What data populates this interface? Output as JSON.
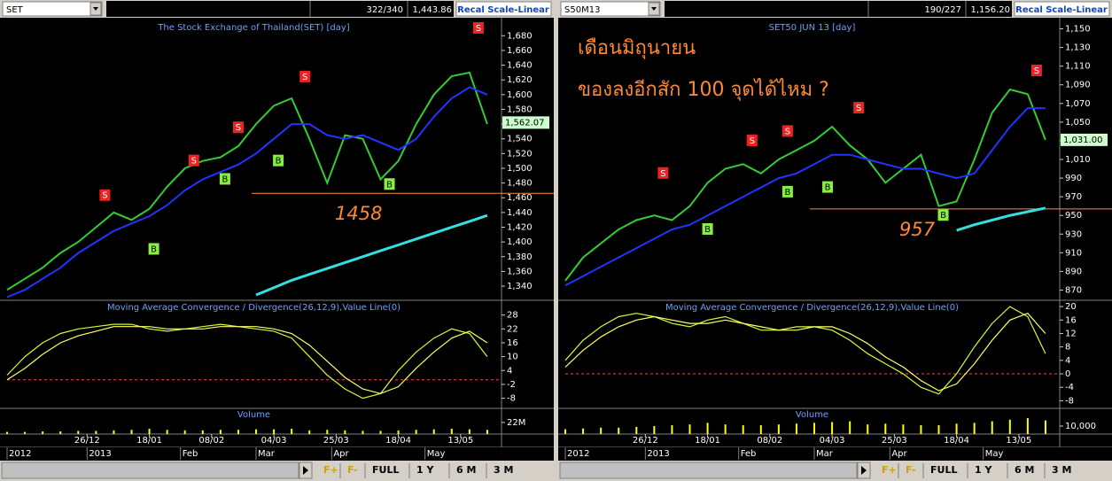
{
  "toolbars": [
    {
      "symbol": "SET",
      "count": "322/340",
      "price": "1,443.86",
      "button": "Recal Scale-Linear"
    },
    {
      "symbol": "S50M13",
      "count": "190/227",
      "price": "1,156.20",
      "button": "Recal Scale-Linear"
    }
  ],
  "bottom_bar": [
    "F+",
    "F-",
    "FULL",
    "1 Y",
    "6 M",
    "3 M"
  ],
  "notes": [
    "เดือนมิถุนายน",
    "ของลงอีกสัก 100 จุดได้ไหม ?"
  ],
  "chart_data": [
    {
      "type": "line",
      "title": "The Stock Exchange of Thailand(SET) [day]",
      "x": [
        0,
        4,
        8,
        12,
        16,
        20,
        24,
        28,
        32,
        36,
        40,
        44,
        48,
        52,
        56,
        60,
        64,
        68,
        72,
        76,
        80,
        84,
        88,
        92,
        96,
        100,
        104,
        108
      ],
      "xlim": [
        0,
        111
      ],
      "xticks": [
        {
          "value": 18,
          "label": "26/12"
        },
        {
          "value": 32,
          "label": "18/01"
        },
        {
          "value": 46,
          "label": "08/02"
        },
        {
          "value": 60,
          "label": "04/03"
        },
        {
          "value": 74,
          "label": "25/03"
        },
        {
          "value": 88,
          "label": "18/04"
        },
        {
          "value": 102,
          "label": "13/05"
        }
      ],
      "periods": [
        {
          "value": 0,
          "label": "2012"
        },
        {
          "value": 18,
          "label": "2013"
        },
        {
          "value": 39,
          "label": "Feb"
        },
        {
          "value": 56,
          "label": "Mar"
        },
        {
          "value": 73,
          "label": "Apr"
        },
        {
          "value": 94,
          "label": "May"
        }
      ],
      "ylim": [
        1322,
        1702
      ],
      "yticks": [
        {
          "value": 1340,
          "label": "1,340"
        },
        {
          "value": 1360,
          "label": "1,360"
        },
        {
          "value": 1380,
          "label": "1,380"
        },
        {
          "value": 1400,
          "label": "1,400"
        },
        {
          "value": 1420,
          "label": "1,420"
        },
        {
          "value": 1440,
          "label": "1,440"
        },
        {
          "value": 1460,
          "label": "1,460"
        },
        {
          "value": 1480,
          "label": "1,480"
        },
        {
          "value": 1500,
          "label": "1,500"
        },
        {
          "value": 1520,
          "label": "1,520"
        },
        {
          "value": 1540,
          "label": "1,540"
        },
        {
          "value": 1560,
          "label": "1,560"
        },
        {
          "value": 1580,
          "label": "1,580"
        },
        {
          "value": 1600,
          "label": "1,600"
        },
        {
          "value": 1620,
          "label": "1,620"
        },
        {
          "value": 1640,
          "label": "1,640"
        },
        {
          "value": 1660,
          "label": "1,660"
        },
        {
          "value": 1680,
          "label": "1,680"
        }
      ],
      "series": [
        {
          "name": "Close",
          "color": "#33cc33",
          "values": [
            1335,
            1350,
            1365,
            1385,
            1400,
            1420,
            1440,
            1430,
            1445,
            1475,
            1500,
            1510,
            1515,
            1530,
            1560,
            1585,
            1595,
            1540,
            1480,
            1545,
            1540,
            1485,
            1510,
            1560,
            1600,
            1625,
            1630,
            1560
          ]
        },
        {
          "name": "MA",
          "color": "#2233ff",
          "values": [
            1325,
            1335,
            1350,
            1365,
            1385,
            1400,
            1415,
            1425,
            1435,
            1450,
            1470,
            1485,
            1495,
            1505,
            1520,
            1540,
            1560,
            1560,
            1545,
            1540,
            1545,
            1535,
            1525,
            1540,
            1570,
            1595,
            1610,
            1600
          ]
        },
        {
          "name": "Value Line",
          "color": "#33e0e0",
          "values": [
            null,
            null,
            null,
            null,
            null,
            null,
            null,
            null,
            null,
            null,
            null,
            null,
            null,
            null,
            1328,
            1338,
            1348,
            1356,
            1364,
            1372,
            1380,
            1388,
            1396,
            1404,
            1412,
            1420,
            1428,
            1436
          ]
        }
      ],
      "last_label": {
        "value": 1562.07,
        "label": "1,562.07"
      },
      "hline": 1466,
      "annotation": "1458",
      "signals": [
        {
          "label": "S",
          "index": 22,
          "value": 1463
        },
        {
          "label": "S",
          "index": 42,
          "value": 1510
        },
        {
          "label": "S",
          "index": 52,
          "value": 1555
        },
        {
          "label": "S",
          "index": 67,
          "value": 1624
        },
        {
          "label": "S",
          "index": 106,
          "value": 1690
        },
        {
          "label": "B",
          "index": 33,
          "value": 1390
        },
        {
          "label": "B",
          "index": 49,
          "value": 1485
        },
        {
          "label": "B",
          "index": 61,
          "value": 1510
        },
        {
          "label": "B",
          "index": 86,
          "value": 1478
        }
      ],
      "macd": {
        "title": "Moving Average Convergence / Divergence(26,12,9),Value Line(0)",
        "ylim": [
          -12,
          34
        ],
        "yticks": [
          28,
          22,
          16,
          10,
          4,
          -2,
          -8
        ],
        "value_line": 0,
        "series": [
          {
            "name": "MACD",
            "color": "#ccff33",
            "values": [
              2,
              10,
              16,
              20,
              22,
              23,
              24,
              24,
              22,
              21,
              22,
              23,
              24,
              23,
              22,
              21,
              18,
              10,
              2,
              -4,
              -8,
              -6,
              4,
              12,
              18,
              22,
              20,
              10
            ]
          },
          {
            "name": "Signal",
            "color": "#ffff66",
            "values": [
              0,
              5,
              11,
              16,
              19,
              21,
              23,
              23,
              23,
              22,
              22,
              22,
              23,
              23,
              23,
              22,
              20,
              15,
              8,
              1,
              -4,
              -6,
              -3,
              5,
              12,
              18,
              21,
              16
            ]
          }
        ]
      },
      "volume": {
        "title": "Volume",
        "color": "#ffff00",
        "ylim": [
          0,
          47000000
        ],
        "yticks": [
          {
            "value": 22000000,
            "label": "22M"
          }
        ],
        "values": [
          4000000,
          4000000,
          5000000,
          5000000,
          6000000,
          6000000,
          7000000,
          8000000,
          10000000,
          8000000,
          7000000,
          7000000,
          8000000,
          8000000,
          9000000,
          9000000,
          10000000,
          7000000,
          8000000,
          7000000,
          6000000,
          6000000,
          7000000,
          8000000,
          9000000,
          10000000,
          9000000,
          8000000
        ]
      }
    },
    {
      "type": "line",
      "title": "SET50 JUN 13   [day]",
      "x": [
        0,
        4,
        8,
        12,
        16,
        20,
        24,
        28,
        32,
        36,
        40,
        44,
        48,
        52,
        56,
        60,
        64,
        68,
        72,
        76,
        80,
        84,
        88,
        92,
        96,
        100,
        104,
        108
      ],
      "xlim": [
        0,
        111
      ],
      "xticks": [
        {
          "value": 18,
          "label": "26/12"
        },
        {
          "value": 32,
          "label": "18/01"
        },
        {
          "value": 46,
          "label": "08/02"
        },
        {
          "value": 60,
          "label": "04/03"
        },
        {
          "value": 74,
          "label": "25/03"
        },
        {
          "value": 88,
          "label": "18/04"
        },
        {
          "value": 102,
          "label": "13/05"
        }
      ],
      "periods": [
        {
          "value": 0,
          "label": "2012"
        },
        {
          "value": 18,
          "label": "2013"
        },
        {
          "value": 39,
          "label": "Feb"
        },
        {
          "value": 56,
          "label": "Mar"
        },
        {
          "value": 73,
          "label": "Apr"
        },
        {
          "value": 94,
          "label": "May"
        }
      ],
      "ylim": [
        860,
        1160
      ],
      "yticks": [
        870,
        890,
        910,
        930,
        950,
        970,
        990,
        {
          "value": 1010,
          "label": "1,010"
        },
        {
          "value": 1030,
          "label": "1,030"
        },
        {
          "value": 1050,
          "label": "1,050"
        },
        {
          "value": 1070,
          "label": "1,070"
        },
        {
          "value": 1090,
          "label": "1,090"
        },
        {
          "value": 1110,
          "label": "1,110"
        },
        {
          "value": 1130,
          "label": "1,130"
        },
        {
          "value": 1150,
          "label": "1,150"
        }
      ],
      "series": [
        {
          "name": "Close",
          "color": "#33cc33",
          "values": [
            880,
            905,
            920,
            935,
            945,
            950,
            945,
            960,
            985,
            1000,
            1005,
            995,
            1010,
            1020,
            1030,
            1045,
            1025,
            1010,
            985,
            1000,
            1015,
            960,
            965,
            1010,
            1060,
            1085,
            1080,
            1031
          ]
        },
        {
          "name": "MA",
          "color": "#2233ff",
          "values": [
            875,
            885,
            895,
            905,
            915,
            925,
            935,
            940,
            950,
            960,
            970,
            980,
            990,
            995,
            1005,
            1015,
            1015,
            1010,
            1005,
            1000,
            1000,
            995,
            990,
            995,
            1020,
            1045,
            1065,
            1065
          ]
        },
        {
          "name": "Value Line",
          "color": "#33e0e0",
          "values": [
            null,
            null,
            null,
            null,
            null,
            null,
            null,
            null,
            null,
            null,
            null,
            null,
            null,
            null,
            null,
            null,
            null,
            null,
            null,
            null,
            null,
            null,
            934,
            940,
            945,
            950,
            954,
            958
          ]
        }
      ],
      "last_label": {
        "value": 1031,
        "label": "1,031.00"
      },
      "hline": 957,
      "annotation": "957",
      "signals": [
        {
          "label": "S",
          "index": 22,
          "value": 995
        },
        {
          "label": "S",
          "index": 42,
          "value": 1030
        },
        {
          "label": "S",
          "index": 50,
          "value": 1040
        },
        {
          "label": "S",
          "index": 66,
          "value": 1065
        },
        {
          "label": "S",
          "index": 106,
          "value": 1105
        },
        {
          "label": "B",
          "index": 32,
          "value": 935
        },
        {
          "label": "B",
          "index": 50,
          "value": 975
        },
        {
          "label": "B",
          "index": 59,
          "value": 980
        },
        {
          "label": "B",
          "index": 85,
          "value": 950
        }
      ],
      "macd": {
        "title": "Moving Average Convergence / Divergence(26,12,9),Value Line(0)",
        "ylim": [
          -10,
          21.6
        ],
        "yticks": [
          20,
          16,
          12,
          8,
          4,
          0,
          -4,
          -8
        ],
        "value_line": 0,
        "series": [
          {
            "name": "MACD",
            "color": "#ccff33",
            "values": [
              4,
              10,
              14,
              17,
              18,
              17,
              15,
              14,
              16,
              17,
              15,
              13,
              13,
              14,
              14,
              13,
              10,
              6,
              3,
              0,
              -4,
              -6,
              0,
              8,
              15,
              20,
              17,
              6
            ]
          },
          {
            "name": "Signal",
            "color": "#ffff66",
            "values": [
              2,
              7,
              11,
              14,
              16,
              17,
              16,
              15,
              15,
              16,
              15,
              14,
              13,
              13,
              14,
              14,
              12,
              9,
              5,
              2,
              -2,
              -5,
              -3,
              3,
              10,
              16,
              18,
              12
            ]
          }
        ]
      },
      "volume": {
        "title": "Volume",
        "color": "#ffff00",
        "ylim": [
          0,
          31000
        ],
        "yticks": [
          {
            "value": 10000,
            "label": "10,000"
          }
        ],
        "values": [
          6000,
          7000,
          8000,
          8000,
          9000,
          10000,
          11000,
          12000,
          14000,
          12000,
          11000,
          11000,
          12000,
          13000,
          14000,
          15000,
          16000,
          12000,
          13000,
          12000,
          11000,
          11000,
          13000,
          14000,
          16000,
          18000,
          20000,
          17000
        ]
      }
    }
  ]
}
